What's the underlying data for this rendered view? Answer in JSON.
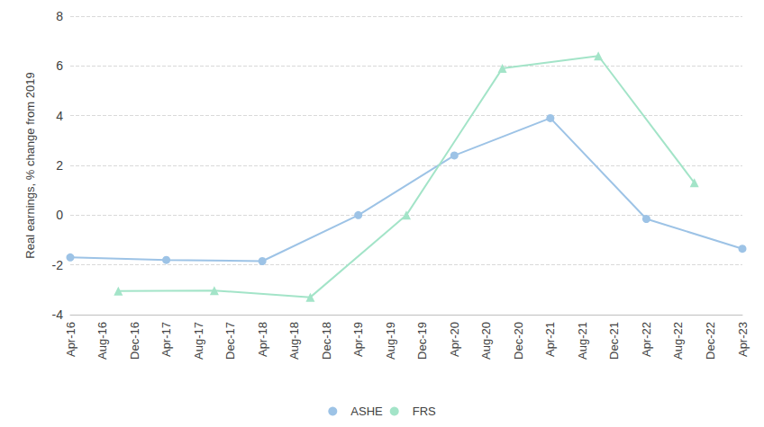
{
  "chart_data": {
    "type": "line",
    "y_label": "Real earnings, % change from 2019",
    "categories": [
      "Apr-16",
      null,
      null,
      null,
      "Aug-16",
      null,
      null,
      null,
      "Dec-16",
      null,
      null,
      null,
      "Apr-17",
      null,
      null,
      null,
      "Aug-17",
      null,
      null,
      null,
      "Dec-17",
      null,
      null,
      null,
      "Apr-18",
      null,
      null,
      null,
      "Aug-18",
      null,
      null,
      null,
      "Dec-18",
      null,
      null,
      null,
      "Apr-19",
      null,
      null,
      null,
      "Aug-19",
      null,
      null,
      null,
      "Dec-19",
      null,
      null,
      null,
      "Apr-20",
      null,
      null,
      null,
      "Aug-20",
      null,
      null,
      null,
      "Dec-20",
      null,
      null,
      null,
      "Apr-21",
      null,
      null,
      null,
      "Aug-21",
      null,
      null,
      null,
      "Dec-21",
      null,
      null,
      null,
      "Apr-22",
      null,
      null,
      null,
      "Aug-22",
      null,
      null,
      null,
      "Dec-22",
      null,
      null,
      null,
      "Apr-23"
    ],
    "series": [
      {
        "name": "ASHE",
        "color": "#9dc3e6",
        "marker": "circle",
        "line_style": "solid",
        "values": [
          -1.7,
          null,
          null,
          null,
          null,
          null,
          null,
          null,
          null,
          null,
          null,
          null,
          -1.8,
          null,
          null,
          null,
          null,
          null,
          null,
          null,
          null,
          null,
          null,
          null,
          -1.85,
          null,
          null,
          null,
          null,
          null,
          null,
          null,
          null,
          null,
          null,
          null,
          0,
          null,
          null,
          null,
          null,
          null,
          null,
          null,
          null,
          null,
          null,
          null,
          2.4,
          null,
          null,
          null,
          null,
          null,
          null,
          null,
          null,
          null,
          null,
          null,
          3.9,
          null,
          null,
          null,
          null,
          null,
          null,
          null,
          null,
          null,
          null,
          null,
          -0.15,
          null,
          null,
          null,
          null,
          null,
          null,
          null,
          null,
          null,
          null,
          null,
          -1.35
        ]
      },
      {
        "name": "FRS",
        "color": "#a3e4c8",
        "marker": "triangle",
        "line_style": "solid",
        "values": [
          null,
          null,
          null,
          null,
          null,
          null,
          -3.05,
          null,
          null,
          null,
          null,
          null,
          null,
          null,
          null,
          null,
          null,
          null,
          -3.03,
          null,
          null,
          null,
          null,
          null,
          null,
          null,
          null,
          null,
          null,
          null,
          -3.3,
          null,
          null,
          null,
          null,
          null,
          null,
          null,
          null,
          null,
          null,
          null,
          0,
          null,
          null,
          null,
          null,
          null,
          null,
          null,
          null,
          null,
          null,
          null,
          5.9,
          null,
          null,
          null,
          null,
          null,
          null,
          null,
          null,
          null,
          null,
          null,
          6.4,
          null,
          null,
          null,
          null,
          null,
          null,
          null,
          null,
          null,
          null,
          null,
          1.3,
          null,
          null,
          null,
          null,
          null,
          null
        ]
      }
    ],
    "ylim": [
      -4,
      8
    ],
    "yticks": [
      -4,
      -2,
      0,
      2,
      4,
      6,
      8
    ],
    "grid": true,
    "legend": "bottom"
  }
}
